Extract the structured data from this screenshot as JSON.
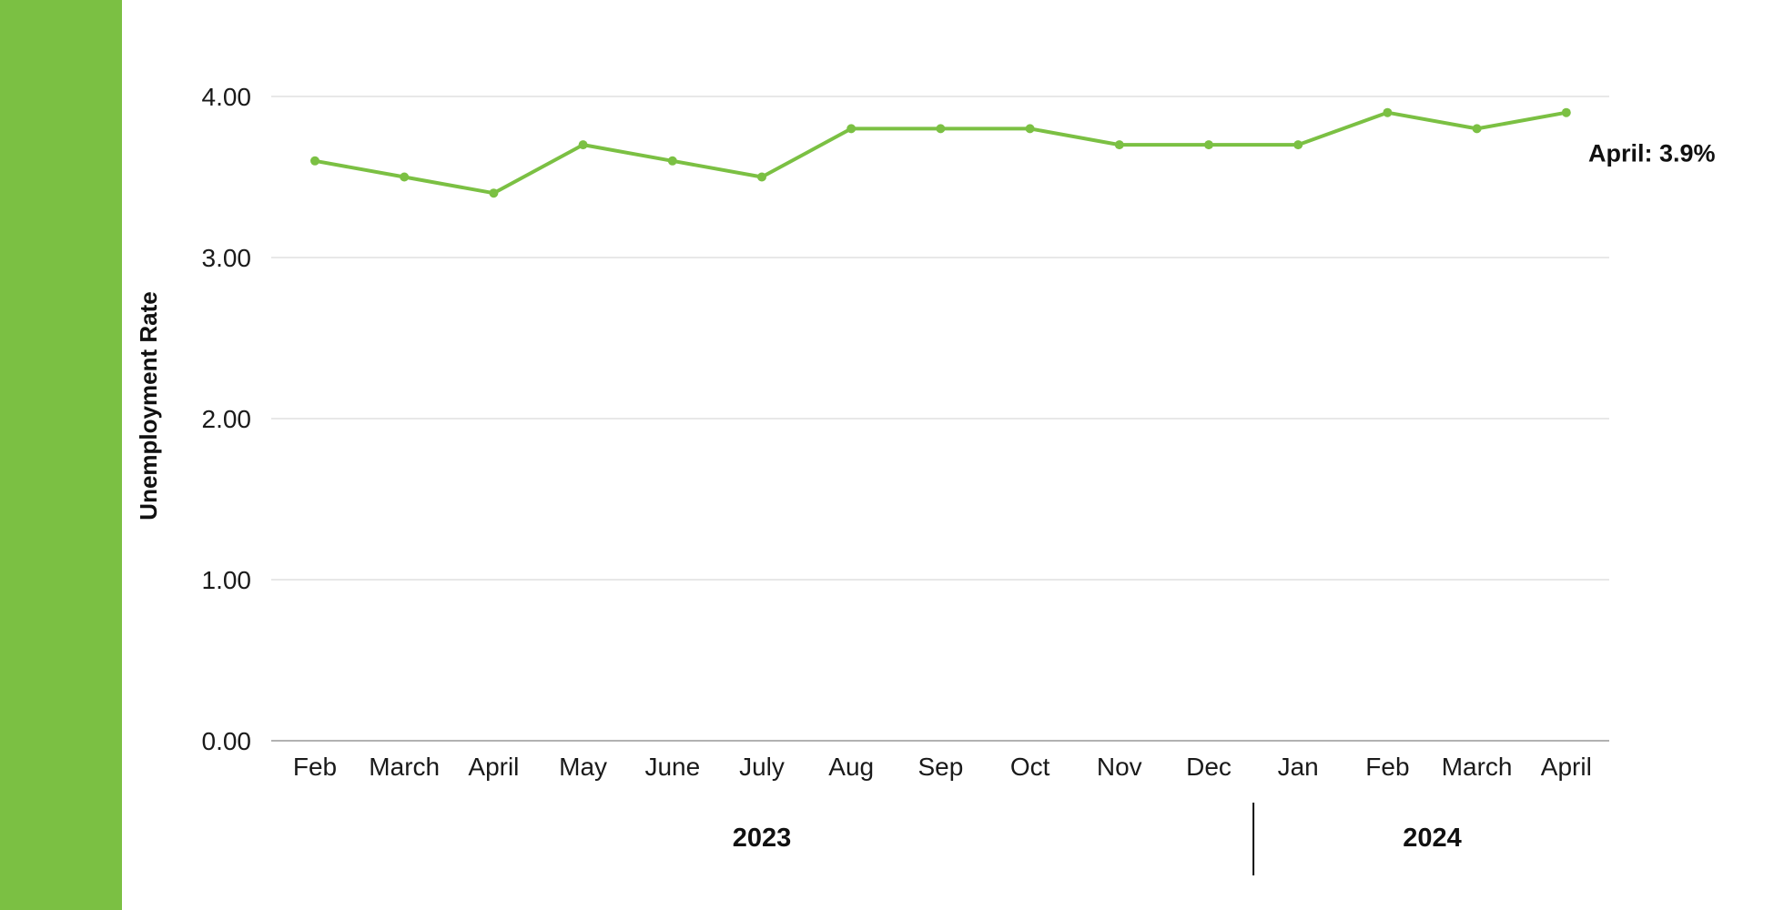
{
  "colors": {
    "accent_bar": "#7bc043",
    "series_line": "#7bc043",
    "grid": "#d9d9d9",
    "axis": "#999999",
    "divider": "#111111"
  },
  "chart_data": {
    "type": "line",
    "ylabel": "Unemployment Rate",
    "ylim": [
      0,
      4
    ],
    "yticks": [
      "0.00",
      "1.00",
      "2.00",
      "3.00",
      "4.00"
    ],
    "grid": true,
    "categories": [
      "Feb",
      "March",
      "April",
      "May",
      "June",
      "July",
      "Aug",
      "Sep",
      "Oct",
      "Nov",
      "Dec",
      "Jan",
      "Feb",
      "March",
      "April"
    ],
    "category_groups": [
      {
        "label": "2023",
        "start": 0,
        "end": 10
      },
      {
        "label": "2024",
        "start": 11,
        "end": 14
      }
    ],
    "series": [
      {
        "values": [
          3.6,
          3.5,
          3.4,
          3.7,
          3.6,
          3.5,
          3.8,
          3.8,
          3.8,
          3.7,
          3.7,
          3.7,
          3.9,
          3.8,
          3.9
        ]
      }
    ],
    "annotation": {
      "text": "April: 3.9%",
      "index": 14
    }
  }
}
